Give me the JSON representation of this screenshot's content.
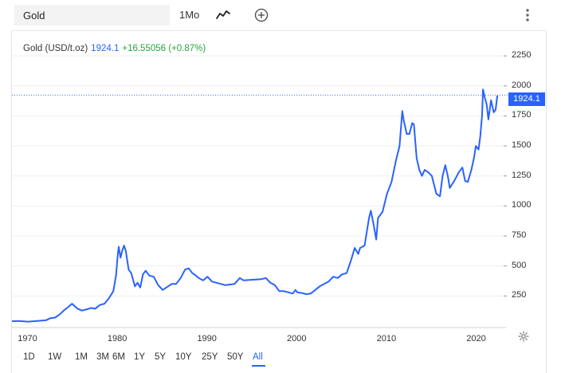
{
  "toolbar": {
    "symbol_value": "Gold",
    "interval_label": "1Mo",
    "chart_type_icon": "line-chart-icon",
    "compare_icon": "plus-circle-icon",
    "menu_icon": "kebab-menu-icon"
  },
  "legend": {
    "name": "Gold (USD/t.oz)",
    "last": "1924.1",
    "change": "+16.55056 (+0.87%)"
  },
  "price_tag": "1924.1",
  "ranges": [
    "1D",
    "1W",
    "1M",
    "3M",
    "6M",
    "1Y",
    "5Y",
    "10Y",
    "25Y",
    "50Y",
    "All"
  ],
  "active_range": "All",
  "colors": {
    "line": "#2962ff",
    "up": "#26a541",
    "grid": "#eceff2"
  },
  "chart_data": {
    "type": "line",
    "title": "Gold (USD/t.oz)",
    "xlabel": "",
    "ylabel": "",
    "x_ticks": [
      "1970",
      "1980",
      "1990",
      "2000",
      "2010",
      "2020"
    ],
    "y_ticks": [
      "250",
      "500",
      "750",
      "1000",
      "1250",
      "1500",
      "1750",
      "2000",
      "2250"
    ],
    "xlim": [
      1968.2,
      2023.0
    ],
    "ylim": [
      0,
      2450
    ],
    "grid": true,
    "last_price_line": 1924.1,
    "series": [
      {
        "name": "Gold (USD/t.oz)",
        "x": [
          1968.2,
          1969.0,
          1970.0,
          1971.0,
          1972.0,
          1972.5,
          1973.0,
          1973.5,
          1974.0,
          1974.5,
          1974.9,
          1975.5,
          1976.0,
          1976.6,
          1977.0,
          1977.5,
          1978.0,
          1978.5,
          1979.0,
          1979.5,
          1979.8,
          1980.0,
          1980.1,
          1980.3,
          1980.5,
          1980.7,
          1980.9,
          1981.2,
          1981.5,
          1981.9,
          1982.2,
          1982.5,
          1982.8,
          1983.1,
          1983.5,
          1984.0,
          1984.5,
          1985.0,
          1985.2,
          1985.6,
          1986.0,
          1986.5,
          1987.0,
          1987.5,
          1987.9,
          1988.3,
          1988.7,
          1989.0,
          1989.5,
          1990.0,
          1990.5,
          1991.0,
          1992.0,
          1993.0,
          1993.6,
          1994.0,
          1995.0,
          1996.0,
          1996.5,
          1997.0,
          1997.5,
          1998.0,
          1998.5,
          1999.0,
          1999.5,
          1999.8,
          2000.0,
          2000.5,
          2001.0,
          2001.5,
          2002.0,
          2002.5,
          2003.0,
          2003.5,
          2004.0,
          2004.5,
          2005.0,
          2005.5,
          2006.0,
          2006.4,
          2006.8,
          2007.0,
          2007.5,
          2008.0,
          2008.2,
          2008.5,
          2008.8,
          2009.0,
          2009.5,
          2010.0,
          2010.5,
          2011.0,
          2011.4,
          2011.7,
          2011.9,
          2012.2,
          2012.5,
          2012.8,
          2013.0,
          2013.3,
          2013.6,
          2013.9,
          2014.2,
          2014.6,
          2015.0,
          2015.5,
          2015.9,
          2016.2,
          2016.5,
          2016.8,
          2017.0,
          2017.5,
          2018.0,
          2018.4,
          2018.7,
          2019.0,
          2019.4,
          2019.7,
          2019.9,
          2020.2,
          2020.4,
          2020.6,
          2020.7,
          2020.9,
          2021.1,
          2021.3,
          2021.6,
          2021.9,
          2022.1,
          2022.3
        ],
        "values": [
          40,
          41,
          36,
          41,
          48,
          65,
          70,
          95,
          130,
          160,
          185,
          145,
          128,
          140,
          150,
          145,
          175,
          185,
          230,
          290,
          420,
          600,
          660,
          570,
          630,
          670,
          620,
          470,
          440,
          330,
          360,
          320,
          430,
          460,
          420,
          410,
          340,
          300,
          310,
          330,
          350,
          350,
          400,
          470,
          480,
          440,
          420,
          400,
          380,
          410,
          370,
          360,
          340,
          350,
          400,
          380,
          385,
          390,
          400,
          360,
          340,
          290,
          290,
          280,
          270,
          300,
          280,
          275,
          265,
          270,
          300,
          330,
          350,
          370,
          410,
          400,
          430,
          440,
          550,
          650,
          600,
          650,
          670,
          900,
          960,
          850,
          720,
          900,
          950,
          1100,
          1200,
          1380,
          1500,
          1790,
          1700,
          1600,
          1600,
          1690,
          1680,
          1400,
          1300,
          1250,
          1300,
          1280,
          1250,
          1100,
          1080,
          1250,
          1340,
          1240,
          1150,
          1210,
          1280,
          1320,
          1210,
          1200,
          1300,
          1400,
          1500,
          1470,
          1580,
          1760,
          1970,
          1900,
          1850,
          1720,
          1880,
          1780,
          1800,
          1920
        ]
      }
    ]
  }
}
